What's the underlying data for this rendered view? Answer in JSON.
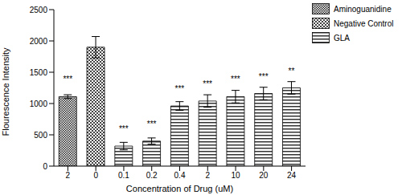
{
  "chart_data": {
    "type": "bar",
    "x_label": "Concentration of Drug (uM)",
    "y_label": "Flourescence Intensity",
    "categories": [
      "2",
      "0",
      "0.1",
      "0.2",
      "0.4",
      "2",
      "10",
      "20",
      "24"
    ],
    "series": [
      {
        "name": "Aminoguanidine",
        "color": "#222222",
        "values": [
          1110,
          null,
          null,
          null,
          null,
          null,
          null,
          null,
          null
        ],
        "errors": [
          30,
          null,
          null,
          null,
          null,
          null,
          null,
          null,
          null
        ]
      },
      {
        "name": "Negative Control",
        "color": "#444444",
        "values": [
          null,
          1900,
          null,
          null,
          null,
          null,
          null,
          null,
          null
        ],
        "errors": [
          null,
          170,
          null,
          null,
          null,
          null,
          null,
          null,
          null
        ]
      },
      {
        "name": "GLA",
        "color": "#333333",
        "values": [
          null,
          null,
          320,
          400,
          960,
          1040,
          1110,
          1160,
          1250
        ],
        "errors": [
          null,
          null,
          60,
          50,
          70,
          100,
          100,
          100,
          100
        ]
      }
    ],
    "significance": [
      "***",
      null,
      "***",
      "***",
      "***",
      "***",
      "***",
      "***",
      "**"
    ],
    "ylim": [
      0,
      2500
    ],
    "yticks": [
      0,
      500,
      1000,
      1500,
      2000,
      2500
    ],
    "grid": false,
    "legend": "upper right"
  }
}
